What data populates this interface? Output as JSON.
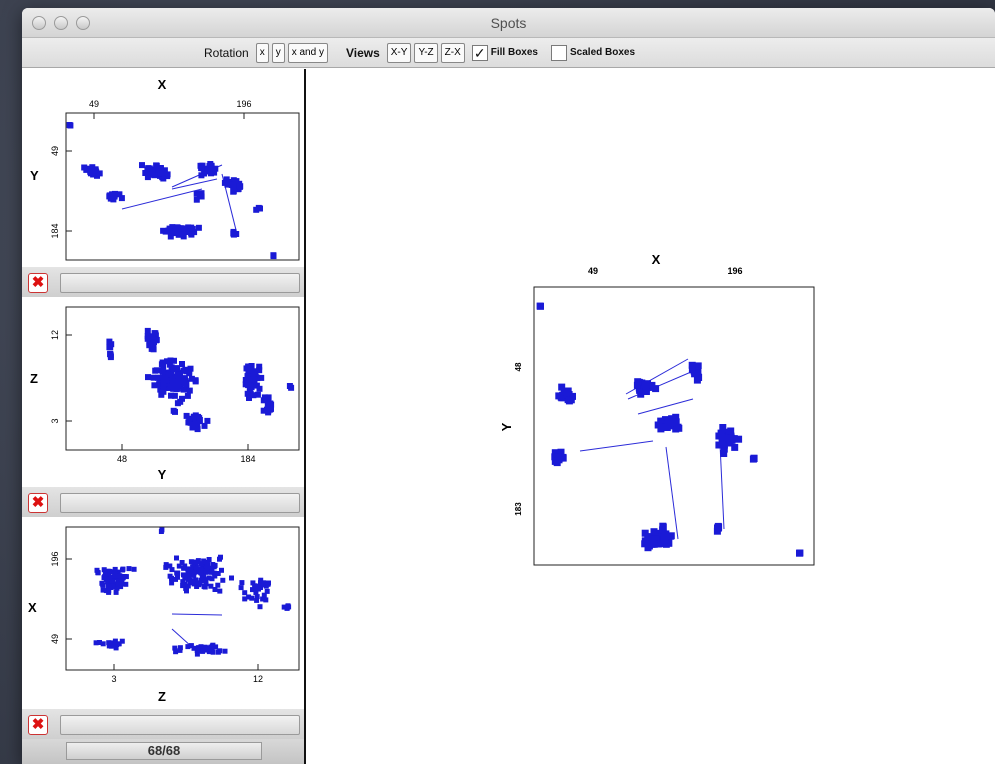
{
  "window": {
    "title": "Spots"
  },
  "toolbar": {
    "rotation_label": "Rotation",
    "rotation_buttons": [
      "x",
      "y",
      "x and y"
    ],
    "views_label": "Views",
    "views_buttons": [
      "X-Y",
      "Y-Z",
      "Z-X"
    ],
    "fill_boxes_label": "Fill Boxes",
    "fill_boxes_checked": true,
    "scaled_boxes_label": "Scaled Boxes",
    "scaled_boxes_checked": false
  },
  "colors": {
    "points": "#1a1ad6",
    "lines": "#2b2bd8"
  },
  "panels": [
    {
      "top_label": "X",
      "ticks_top": [
        "49",
        "196"
      ],
      "left_label": "Y",
      "ticks_left": [
        "49",
        "184"
      ]
    },
    {
      "bottom_label": "Y",
      "ticks_bottom": [
        "48",
        "184"
      ],
      "left_label": "Z",
      "ticks_left": [
        "12",
        "3"
      ]
    },
    {
      "bottom_label": "Z",
      "ticks_bottom": [
        "3",
        "12"
      ],
      "left_label": "X",
      "ticks_left": [
        "196",
        "49"
      ]
    }
  ],
  "main_plot": {
    "top_label": "X",
    "ticks_top": [
      "49",
      "196"
    ],
    "left_label": "Y",
    "ticks_left": [
      "48",
      "183"
    ]
  },
  "footer": {
    "counter": "68/68"
  }
}
